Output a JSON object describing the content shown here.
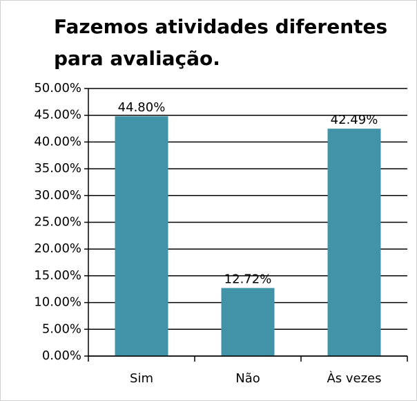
{
  "chart_data": {
    "type": "bar",
    "title": "Fazemos atividades diferentes para avaliação.",
    "categories": [
      "Sim",
      "Não",
      "Às vezes"
    ],
    "values": [
      44.8,
      12.72,
      42.49
    ],
    "value_labels": [
      "44.80%",
      "12.72%",
      "42.49%"
    ],
    "color": "#4193a8",
    "ylim": [
      0,
      50
    ],
    "yticks": [
      {
        "value": 0,
        "label": "0.00%"
      },
      {
        "value": 5,
        "label": "5.00%"
      },
      {
        "value": 10,
        "label": "10.00%"
      },
      {
        "value": 15,
        "label": "15.00%"
      },
      {
        "value": 20,
        "label": "20.00%"
      },
      {
        "value": 25,
        "label": "25.00%"
      },
      {
        "value": 30,
        "label": "30.00%"
      },
      {
        "value": 35,
        "label": "35.00%"
      },
      {
        "value": 40,
        "label": "40.00%"
      },
      {
        "value": 45,
        "label": "45.00%"
      },
      {
        "value": 50,
        "label": "50.00%"
      }
    ],
    "grid": true
  }
}
